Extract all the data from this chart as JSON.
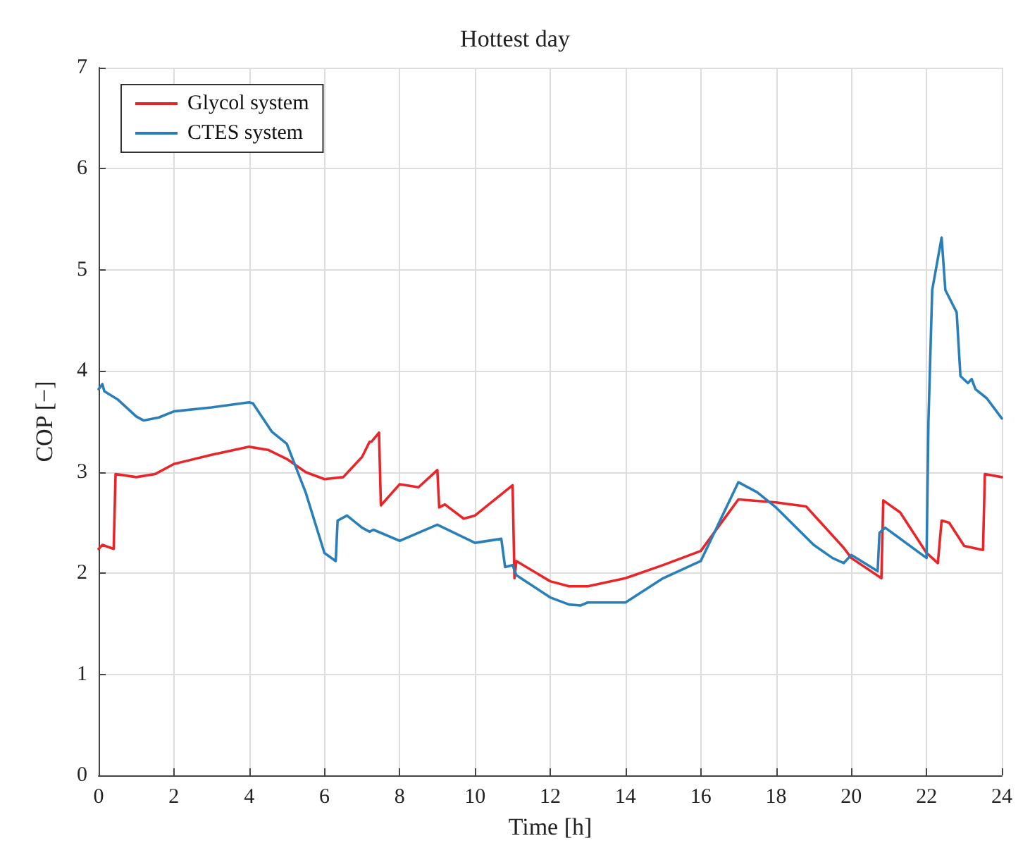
{
  "chart_data": {
    "type": "line",
    "title": "Hottest day",
    "xlabel": "Time [h]",
    "ylabel": "COP [−]",
    "xlim": [
      0,
      24
    ],
    "ylim": [
      0,
      7
    ],
    "xticks": [
      0,
      2,
      4,
      6,
      8,
      10,
      12,
      14,
      16,
      18,
      20,
      22,
      24
    ],
    "yticks": [
      0,
      1,
      2,
      3,
      4,
      5,
      6,
      7
    ],
    "grid": true,
    "legend": "top left",
    "marker": "none",
    "line_style": "solid",
    "series": [
      {
        "name": "Glycol system",
        "color": "#e8262a",
        "x": [
          0,
          0.1,
          0.4,
          0.45,
          1,
          1.5,
          2,
          3,
          4,
          4.5,
          5,
          5.5,
          6,
          6.5,
          7,
          7.2,
          7.25,
          7.45,
          7.5,
          8,
          8.5,
          9,
          9.05,
          9.2,
          9.7,
          10,
          11,
          11.05,
          11.1,
          12,
          12.5,
          13,
          14,
          15,
          16,
          17,
          18,
          18.8,
          19.8,
          20,
          20.8,
          20.85,
          21.3,
          22,
          22.3,
          22.4,
          22.6,
          23,
          23.5,
          23.55,
          24
        ],
        "values": [
          2.24,
          2.28,
          2.24,
          2.98,
          2.95,
          2.98,
          3.08,
          3.17,
          3.25,
          3.22,
          3.13,
          3.0,
          2.93,
          2.95,
          3.15,
          3.3,
          3.3,
          3.39,
          2.67,
          2.88,
          2.85,
          3.02,
          2.65,
          2.68,
          2.54,
          2.57,
          2.87,
          1.95,
          2.12,
          1.92,
          1.87,
          1.87,
          1.95,
          2.08,
          2.22,
          2.73,
          2.7,
          2.66,
          2.25,
          2.15,
          1.95,
          2.72,
          2.6,
          2.2,
          2.1,
          2.52,
          2.5,
          2.27,
          2.23,
          2.98,
          2.95
        ]
      },
      {
        "name": "CTES system",
        "color": "#2a7fb8",
        "x": [
          0,
          0.1,
          0.15,
          0.5,
          1,
          1.2,
          1.6,
          2,
          3,
          4,
          4.1,
          4.6,
          5,
          5.5,
          6,
          6.3,
          6.35,
          6.6,
          7,
          7.2,
          7.3,
          8,
          9,
          10,
          10.7,
          10.8,
          11,
          11.1,
          12,
          12.5,
          12.8,
          13,
          14,
          15,
          16,
          17,
          17.5,
          18,
          19,
          19.5,
          19.8,
          20,
          20.7,
          20.75,
          20.9,
          22,
          22.05,
          22.15,
          22.4,
          22.5,
          22.8,
          22.9,
          23.1,
          23.2,
          23.3,
          23.6,
          24
        ],
        "values": [
          3.82,
          3.87,
          3.8,
          3.72,
          3.55,
          3.51,
          3.54,
          3.6,
          3.64,
          3.69,
          3.68,
          3.4,
          3.28,
          2.8,
          2.2,
          2.12,
          2.52,
          2.57,
          2.45,
          2.41,
          2.43,
          2.32,
          2.48,
          2.3,
          2.34,
          2.06,
          2.08,
          1.98,
          1.76,
          1.69,
          1.68,
          1.71,
          1.71,
          1.95,
          2.12,
          2.9,
          2.8,
          2.65,
          2.28,
          2.15,
          2.1,
          2.18,
          2.02,
          2.4,
          2.45,
          2.15,
          3.5,
          4.8,
          5.32,
          4.8,
          4.58,
          3.95,
          3.88,
          3.92,
          3.82,
          3.73,
          3.53
        ]
      }
    ]
  }
}
